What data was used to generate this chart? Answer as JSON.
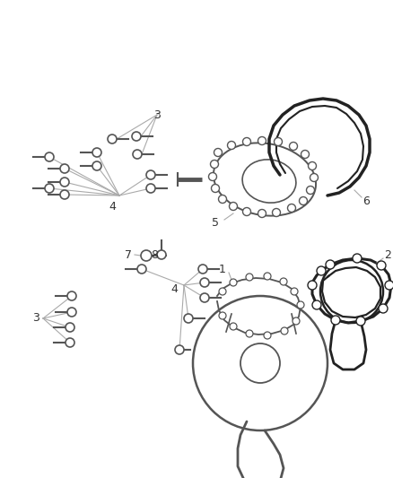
{
  "background": "#ffffff",
  "line_color": "#aaaaaa",
  "part_color": "#555555",
  "dark_color": "#222222",
  "label_color": "#333333",
  "figsize": [
    4.38,
    5.33
  ],
  "dpi": 100
}
